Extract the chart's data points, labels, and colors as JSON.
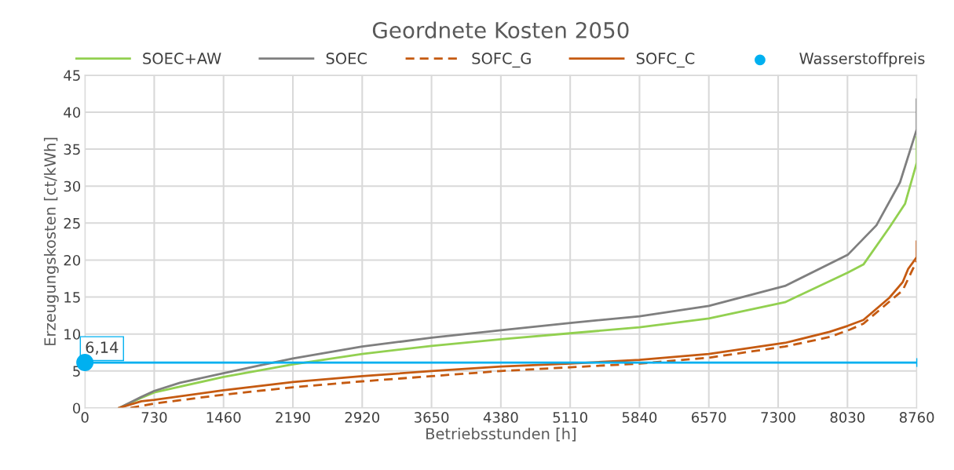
{
  "chart_data": {
    "type": "line",
    "title": "Geordnete Kosten 2050",
    "xlabel": "Betriebsstunden [h]",
    "ylabel": "Erzeugungskosten [ct/kWh]",
    "xlim": [
      0,
      8760
    ],
    "ylim": [
      0,
      45
    ],
    "xticks": [
      0,
      730,
      1460,
      2190,
      2920,
      3650,
      4380,
      5110,
      5840,
      6570,
      7300,
      8030,
      8760
    ],
    "yticks": [
      0,
      5,
      10,
      15,
      20,
      25,
      30,
      35,
      40,
      45
    ],
    "grid": true,
    "legend": "top",
    "marker": "none",
    "series": [
      {
        "name": "SOEC+AW",
        "color": "#92d050",
        "line_style": "solid",
        "x": [
          360,
          600,
          730,
          1460,
          2190,
          2920,
          3650,
          4380,
          5110,
          5840,
          6570,
          7372,
          8032,
          8198,
          8471,
          8636,
          8760,
          8760
        ],
        "values": [
          0,
          1.4,
          2.1,
          4.2,
          5.9,
          7.3,
          8.4,
          9.3,
          10.1,
          10.9,
          12.1,
          14.3,
          18.3,
          19.4,
          24.4,
          27.6,
          33.2,
          36.6
        ]
      },
      {
        "name": "SOEC",
        "color": "#7f7f7f",
        "line_style": "solid",
        "x": [
          360,
          595,
          730,
          1000,
          1460,
          1825,
          2190,
          2920,
          3650,
          4380,
          5110,
          5840,
          6570,
          7372,
          8032,
          8335,
          8583,
          8760,
          8760
        ],
        "values": [
          0,
          1.5,
          2.3,
          3.4,
          4.7,
          5.7,
          6.7,
          8.3,
          9.5,
          10.5,
          11.5,
          12.4,
          13.8,
          16.5,
          20.7,
          24.7,
          30.5,
          37.7,
          41.7
        ]
      },
      {
        "name": "SOFC_G",
        "color": "#c55a11",
        "line_style": "dashed",
        "x": [
          480,
          730,
          1460,
          2190,
          2920,
          3650,
          4380,
          5110,
          5840,
          6570,
          7372,
          7842,
          8057,
          8198,
          8611,
          8760
        ],
        "values": [
          0,
          0.6,
          1.8,
          2.8,
          3.6,
          4.3,
          5.0,
          5.5,
          6.0,
          6.8,
          8.3,
          9.6,
          10.6,
          11.4,
          15.9,
          19.9
        ]
      },
      {
        "name": "SOFC_C",
        "color": "#c55a11",
        "line_style": "solid",
        "x": [
          360,
          595,
          730,
          1460,
          2190,
          2920,
          3650,
          4380,
          5110,
          5840,
          6570,
          7372,
          7842,
          8032,
          8198,
          8471,
          8611,
          8669,
          8760,
          8760
        ],
        "values": [
          0,
          0.9,
          1.1,
          2.4,
          3.5,
          4.3,
          5.0,
          5.6,
          6.0,
          6.5,
          7.3,
          8.8,
          10.3,
          11.1,
          11.9,
          14.9,
          17.0,
          18.8,
          20.4,
          22.5
        ]
      },
      {
        "name": "Wasserstoffpreis",
        "type": "scatter",
        "marker": "circle",
        "color": "#00b0f0",
        "x": [
          0
        ],
        "values": [
          6.14
        ],
        "xerrors": [
          [
            0,
            8760
          ]
        ],
        "value_labels": [
          "6,14"
        ]
      }
    ]
  }
}
